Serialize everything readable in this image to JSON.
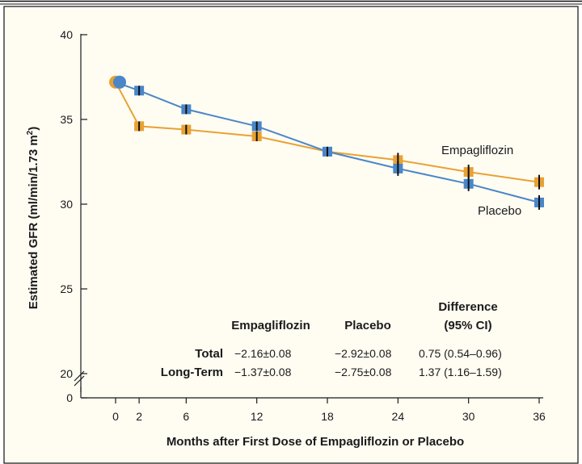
{
  "chart_data": {
    "type": "line",
    "xlabel": "Months after First Dose of Empagliflozin or Placebo",
    "ylabel": "Estimated GFR (ml/min/1.73 m²)",
    "ylabel_main": "Estimated GFR (ml/min/1.73 m",
    "ylabel_sup": "2",
    "ylabel_end": ")",
    "xlim": [
      0,
      36
    ],
    "ylim": [
      20,
      40
    ],
    "axis_break": true,
    "xticks": [
      0,
      2,
      6,
      12,
      18,
      24,
      30,
      36
    ],
    "yticks": [
      {
        "value": 40,
        "label": "40"
      },
      {
        "value": 35,
        "label": "35"
      },
      {
        "value": 30,
        "label": "30"
      },
      {
        "value": 25,
        "label": "25"
      },
      {
        "value": 20,
        "label": "20"
      },
      {
        "value": 0,
        "label": "0"
      }
    ],
    "series": [
      {
        "name": "Empagliflozin",
        "color": "#e8a234",
        "x": [
          0,
          2,
          6,
          12,
          18,
          24,
          30,
          36
        ],
        "y": [
          37.2,
          34.6,
          34.4,
          34.0,
          33.1,
          32.6,
          31.9,
          31.3
        ]
      },
      {
        "name": "Placebo",
        "color": "#4a86c8",
        "x": [
          0,
          2,
          6,
          12,
          18,
          24,
          30,
          36
        ],
        "y": [
          37.2,
          36.7,
          35.6,
          34.6,
          33.1,
          32.1,
          31.2,
          30.1
        ]
      }
    ],
    "table": {
      "headers": {
        "empagliflozin": "Empagliflozin",
        "placebo": "Placebo",
        "difference_line1": "Difference",
        "difference_line2": "(95% CI)"
      },
      "rows": [
        {
          "label": "Total",
          "empagliflozin": "−2.16±0.08",
          "placebo": "−2.92±0.08",
          "difference": "0.75 (0.54–0.96)"
        },
        {
          "label": "Long-Term",
          "empagliflozin": "−1.37±0.08",
          "placebo": "−2.75±0.08",
          "difference": "1.37 (1.16–1.59)"
        }
      ]
    }
  }
}
